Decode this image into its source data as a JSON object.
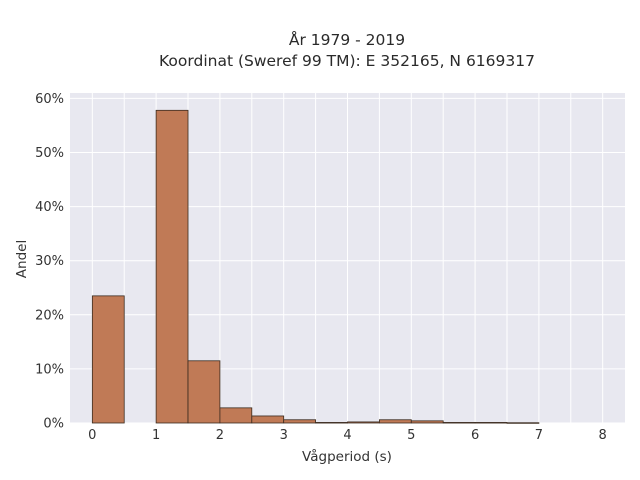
{
  "chart_data": {
    "type": "bar",
    "title_line1": "År 1979 - 2019",
    "title_line2": "Koordinat (Sweref 99 TM): E 352165, N 6169317",
    "xlabel": "Vågperiod (s)",
    "ylabel": "Andel",
    "xlim": [
      -0.35,
      8.35
    ],
    "ylim": [
      0,
      0.61
    ],
    "x_ticks": [
      0,
      1,
      2,
      3,
      4,
      5,
      6,
      7,
      8
    ],
    "x_tick_labels": [
      "0",
      "1",
      "2",
      "3",
      "4",
      "5",
      "6",
      "7",
      "8"
    ],
    "y_ticks": [
      0,
      0.1,
      0.2,
      0.3,
      0.4,
      0.5,
      0.6
    ],
    "y_tick_labels": [
      "0%",
      "10%",
      "20%",
      "30%",
      "40%",
      "50%",
      "60%"
    ],
    "grid": true,
    "bin_width": 0.5,
    "bins": [
      {
        "start": 0.0,
        "value": 0.235
      },
      {
        "start": 0.5,
        "value": 0.0
      },
      {
        "start": 1.0,
        "value": 0.578
      },
      {
        "start": 1.5,
        "value": 0.115
      },
      {
        "start": 2.0,
        "value": 0.028
      },
      {
        "start": 2.5,
        "value": 0.013
      },
      {
        "start": 3.0,
        "value": 0.006
      },
      {
        "start": 3.5,
        "value": 0.001
      },
      {
        "start": 4.0,
        "value": 0.002
      },
      {
        "start": 4.5,
        "value": 0.006
      },
      {
        "start": 5.0,
        "value": 0.004
      },
      {
        "start": 5.5,
        "value": 0.001
      },
      {
        "start": 6.0,
        "value": 0.001
      },
      {
        "start": 6.5,
        "value": 0.0005
      }
    ],
    "colors": {
      "bar": "#c07a56",
      "bar_edge": "#3a2a1e",
      "plot_bg": "#e8e8f0",
      "grid": "#ffffff"
    }
  }
}
